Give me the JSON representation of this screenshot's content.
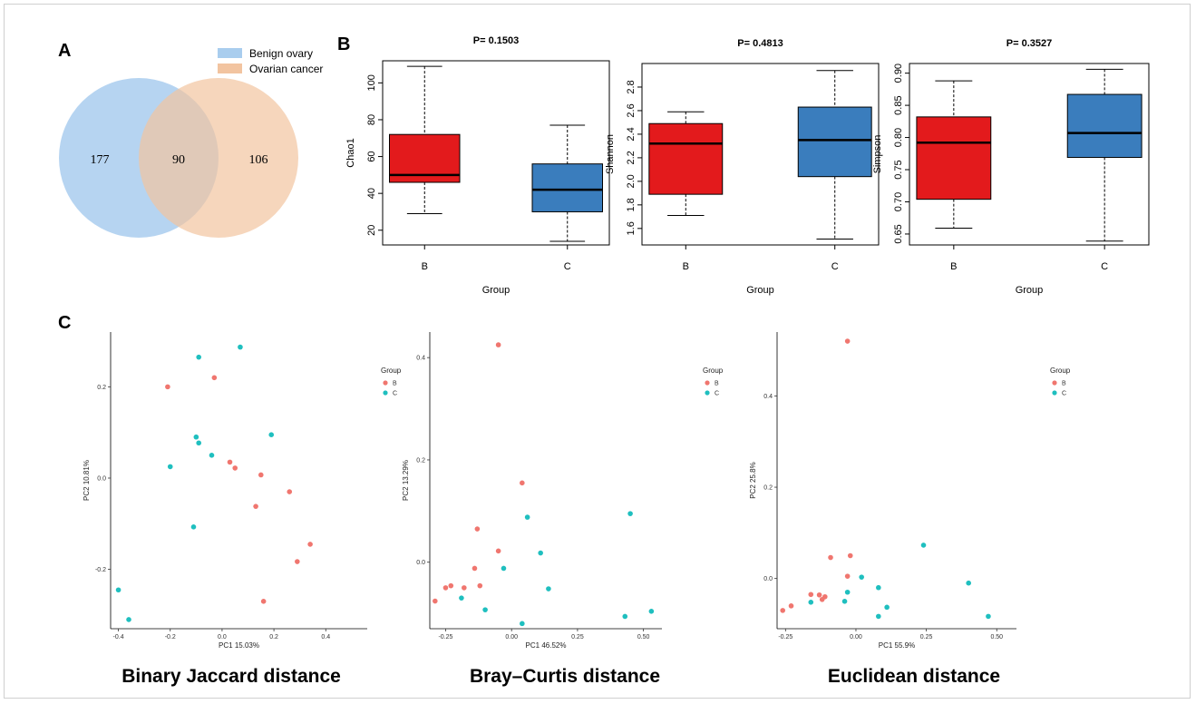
{
  "panels": {
    "a": {
      "letter": "A"
    },
    "b": {
      "letter": "B"
    },
    "c": {
      "letter": "C"
    }
  },
  "colors": {
    "benign_fill": "#a9cdee",
    "cancer_fill": "#f2c4a0",
    "box_b": "#e31a1c",
    "box_c": "#3a7dbd",
    "point_b": "#f0766f",
    "point_c": "#1fbfbf"
  },
  "chart_data": [
    {
      "type": "venn",
      "sets": [
        {
          "name": "Benign ovary",
          "only": 177
        },
        {
          "name": "Ovarian cancer",
          "only": 106
        }
      ],
      "intersection": 90,
      "legend": "top-right"
    },
    {
      "type": "box",
      "title": "P= 0.1503",
      "ylabel": "Chao1",
      "xlabel": "Group",
      "ylim": [
        12,
        112
      ],
      "yticks": [
        20,
        40,
        60,
        80,
        100
      ],
      "categories": [
        "B",
        "C"
      ],
      "boxes": [
        {
          "name": "B",
          "min": 29,
          "q1": 46,
          "median": 50,
          "q3": 72,
          "max": 109
        },
        {
          "name": "C",
          "min": 14,
          "q1": 30,
          "median": 42,
          "q3": 56,
          "max": 77
        }
      ]
    },
    {
      "type": "box",
      "title": "P= 0.4813",
      "ylabel": "Shannon",
      "xlabel": "Group",
      "ylim": [
        1.46,
        3.0
      ],
      "yticks": [
        "1.6",
        "1.8",
        "2.0",
        "2.2",
        "2.4",
        "2.6",
        "2.8"
      ],
      "categories": [
        "B",
        "C"
      ],
      "boxes": [
        {
          "name": "B",
          "min": 1.71,
          "q1": 1.89,
          "median": 2.32,
          "q3": 2.49,
          "max": 2.59
        },
        {
          "name": "C",
          "min": 1.51,
          "q1": 2.04,
          "median": 2.35,
          "q3": 2.63,
          "max": 2.94
        }
      ]
    },
    {
      "type": "box",
      "title": "P= 0.3527",
      "ylabel": "Simpson",
      "xlabel": "Group",
      "ylim": [
        0.633,
        0.915
      ],
      "yticks": [
        "0.65",
        "0.70",
        "0.75",
        "0.80",
        "0.85",
        "0.90"
      ],
      "categories": [
        "B",
        "C"
      ],
      "boxes": [
        {
          "name": "B",
          "min": 0.659,
          "q1": 0.704,
          "median": 0.792,
          "q3": 0.832,
          "max": 0.888
        },
        {
          "name": "C",
          "min": 0.639,
          "q1": 0.769,
          "median": 0.807,
          "q3": 0.867,
          "max": 0.906
        }
      ]
    },
    {
      "type": "scatter",
      "caption": "Binary Jaccard distance",
      "xlabel": "PC1 15.03%",
      "ylabel": "PC2 10.81%",
      "xlim": [
        -0.43,
        0.56
      ],
      "ylim": [
        -0.33,
        0.32
      ],
      "xticks": [
        "-0.4",
        "-0.2",
        "0.0",
        "0.2",
        "0.4"
      ],
      "yticks": [
        "-0.2",
        "0.0",
        "0.2"
      ],
      "legend_title": "Group",
      "legend": "right",
      "series": [
        {
          "name": "B",
          "points": [
            [
              -0.21,
              0.2
            ],
            [
              -0.03,
              0.22
            ],
            [
              0.03,
              0.035
            ],
            [
              0.05,
              0.022
            ],
            [
              0.15,
              0.007
            ],
            [
              0.26,
              -0.03
            ],
            [
              0.13,
              -0.062
            ],
            [
              0.34,
              -0.145
            ],
            [
              0.29,
              -0.183
            ],
            [
              0.16,
              -0.27
            ]
          ]
        },
        {
          "name": "C",
          "points": [
            [
              -0.09,
              0.265
            ],
            [
              0.07,
              0.287
            ],
            [
              0.19,
              0.095
            ],
            [
              -0.1,
              0.09
            ],
            [
              -0.09,
              0.077
            ],
            [
              -0.04,
              0.05
            ],
            [
              -0.2,
              0.025
            ],
            [
              -0.11,
              -0.107
            ],
            [
              -0.4,
              -0.245
            ],
            [
              -0.36,
              -0.31
            ]
          ]
        }
      ]
    },
    {
      "type": "scatter",
      "caption": "Bray–Curtis distance",
      "xlabel": "PC1 46.52%",
      "ylabel": "PC2 13.29%",
      "xlim": [
        -0.31,
        0.57
      ],
      "ylim": [
        -0.13,
        0.45
      ],
      "xticks": [
        "-0.25",
        "0.00",
        "0.25",
        "0.50"
      ],
      "yticks": [
        "0.0",
        "0.2",
        "0.4"
      ],
      "legend_title": "Group",
      "legend": "right",
      "series": [
        {
          "name": "B",
          "points": [
            [
              -0.05,
              0.425
            ],
            [
              0.04,
              0.155
            ],
            [
              -0.13,
              0.065
            ],
            [
              -0.05,
              0.022
            ],
            [
              -0.14,
              -0.012
            ],
            [
              -0.23,
              -0.046
            ],
            [
              -0.12,
              -0.046
            ],
            [
              -0.18,
              -0.05
            ],
            [
              -0.25,
              -0.05
            ],
            [
              -0.29,
              -0.076
            ]
          ]
        },
        {
          "name": "C",
          "points": [
            [
              0.06,
              0.088
            ],
            [
              0.45,
              0.095
            ],
            [
              0.11,
              0.018
            ],
            [
              -0.03,
              -0.012
            ],
            [
              0.14,
              -0.052
            ],
            [
              -0.19,
              -0.07
            ],
            [
              -0.1,
              -0.093
            ],
            [
              0.04,
              -0.12
            ],
            [
              0.43,
              -0.106
            ],
            [
              0.53,
              -0.096
            ]
          ]
        }
      ]
    },
    {
      "type": "scatter",
      "caption": "Euclidean distance",
      "xlabel": "PC1 55.9%",
      "ylabel": "PC2 25.8%",
      "xlim": [
        -0.28,
        0.57
      ],
      "ylim": [
        -0.11,
        0.54
      ],
      "xticks": [
        "-0.25",
        "0.00",
        "0.25",
        "0.50"
      ],
      "yticks": [
        "0.0",
        "0.2",
        "0.4"
      ],
      "legend_title": "Group",
      "legend": "right",
      "series": [
        {
          "name": "B",
          "points": [
            [
              -0.03,
              0.52
            ],
            [
              -0.02,
              0.05
            ],
            [
              -0.09,
              0.046
            ],
            [
              -0.03,
              0.005
            ],
            [
              -0.13,
              -0.036
            ],
            [
              -0.11,
              -0.04
            ],
            [
              -0.16,
              -0.035
            ],
            [
              -0.12,
              -0.046
            ],
            [
              -0.23,
              -0.06
            ],
            [
              -0.26,
              -0.07
            ]
          ]
        },
        {
          "name": "C",
          "points": [
            [
              0.24,
              0.073
            ],
            [
              0.02,
              0.003
            ],
            [
              0.4,
              -0.01
            ],
            [
              0.08,
              -0.02
            ],
            [
              -0.03,
              -0.03
            ],
            [
              -0.04,
              -0.05
            ],
            [
              -0.16,
              -0.052
            ],
            [
              0.11,
              -0.063
            ],
            [
              0.08,
              -0.083
            ],
            [
              0.47,
              -0.083
            ]
          ]
        }
      ]
    }
  ]
}
